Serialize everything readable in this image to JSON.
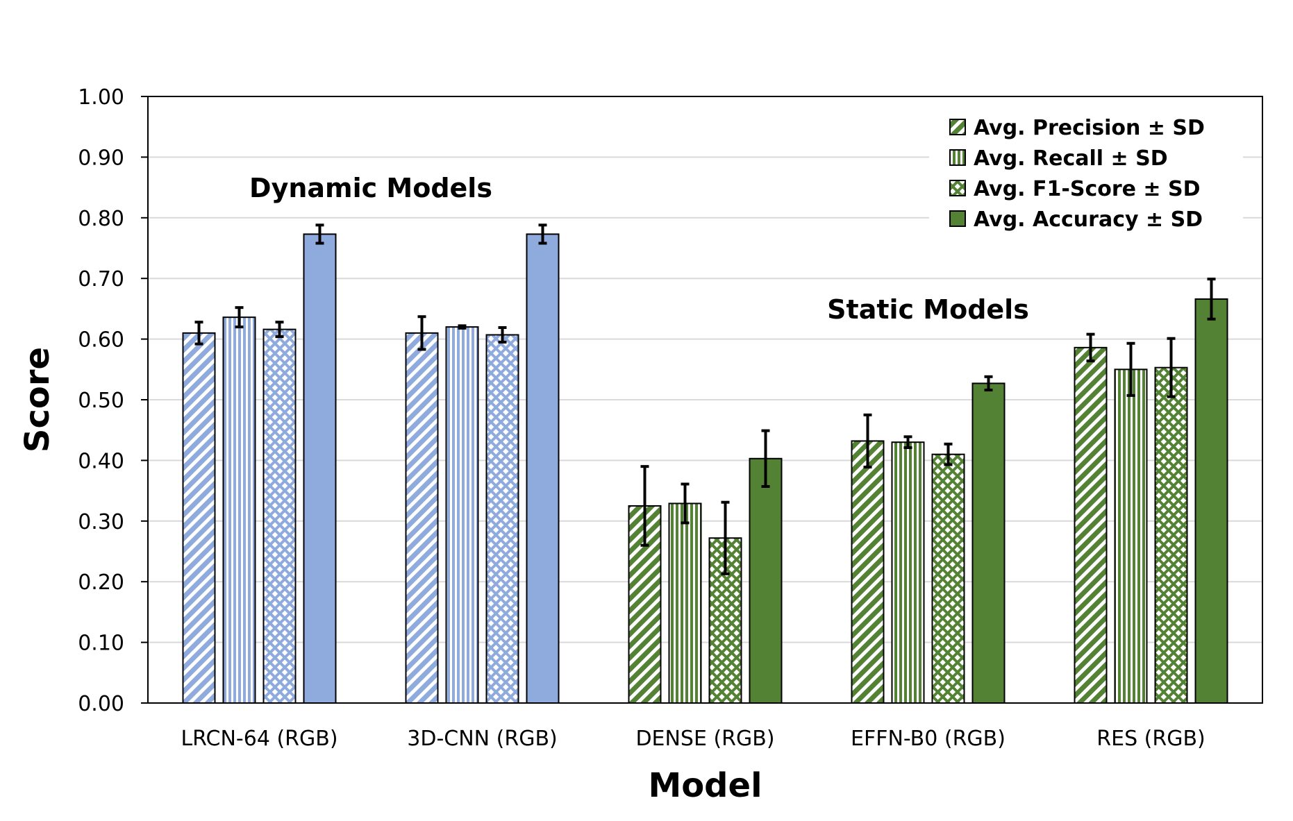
{
  "chart_data": {
    "type": "bar",
    "xlabel": "Model",
    "ylabel": "Score",
    "ylim": [
      0,
      1.0
    ],
    "yticks": [
      "0.00",
      "0.10",
      "0.20",
      "0.30",
      "0.40",
      "0.50",
      "0.60",
      "0.70",
      "0.80",
      "0.90",
      "1.00"
    ],
    "grid": true,
    "legend_position": "top-right",
    "categories": [
      "LRCN-64 (RGB)",
      "3D-CNN (RGB)",
      "DENSE (RGB)",
      "EFFN-B0 (RGB)",
      "RES (RGB)"
    ],
    "category_groups": [
      "dynamic",
      "dynamic",
      "static",
      "static",
      "static"
    ],
    "group_colors": {
      "dynamic": "#8faadc",
      "static": "#548235"
    },
    "series": [
      {
        "name": "Avg. Precision ± SD",
        "pattern": "diagonal",
        "values": [
          0.61,
          0.61,
          0.325,
          0.432,
          0.586
        ],
        "sd": [
          0.018,
          0.027,
          0.065,
          0.043,
          0.022
        ]
      },
      {
        "name": "Avg. Recall ± SD",
        "pattern": "vertical",
        "values": [
          0.636,
          0.62,
          0.329,
          0.43,
          0.55
        ],
        "sd": [
          0.016,
          0.002,
          0.032,
          0.009,
          0.043
        ]
      },
      {
        "name": "Avg. F1-Score ± SD",
        "pattern": "crosshatch",
        "values": [
          0.616,
          0.607,
          0.272,
          0.41,
          0.553
        ],
        "sd": [
          0.012,
          0.012,
          0.059,
          0.017,
          0.048
        ]
      },
      {
        "name": "Avg. Accuracy ± SD",
        "pattern": "solid",
        "values": [
          0.773,
          0.773,
          0.403,
          0.527,
          0.666
        ],
        "sd": [
          0.015,
          0.015,
          0.046,
          0.011,
          0.033
        ]
      }
    ],
    "annotations": [
      {
        "text": "Dynamic Models",
        "x": 0.5,
        "y": 0.85
      },
      {
        "text": "Static Models",
        "x": 3.0,
        "y": 0.65
      }
    ]
  }
}
